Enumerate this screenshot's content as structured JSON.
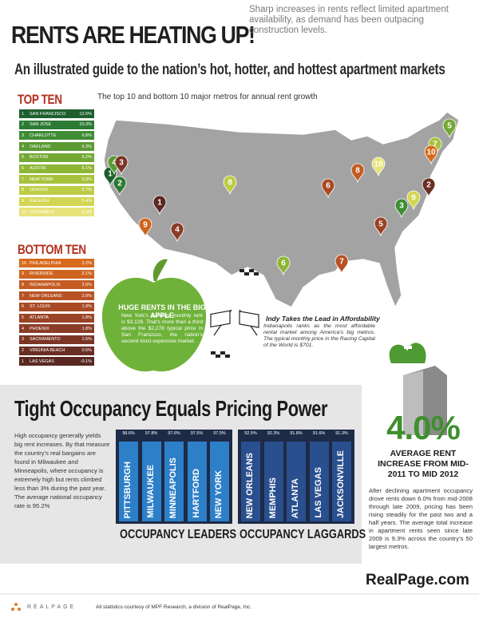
{
  "header": {
    "title": "RENTS ARE HEATING UP!",
    "intro": "Sharp increases in rents reflect limited apartment availability, as demand has been outpacing construction levels.",
    "subtitle": "An illustrated guide to the nation’s hot, hotter, and hottest apartment markets"
  },
  "map": {
    "caption": "The top 10 and bottom 10 major metros for annual rent growth"
  },
  "top_ten": {
    "heading": "TOP TEN",
    "items": [
      {
        "rank": 1,
        "name": "SAN FRANCISCO",
        "value": "12.6%"
      },
      {
        "rank": 2,
        "name": "SAN JOSE",
        "value": "10.3%"
      },
      {
        "rank": 3,
        "name": "CHARLOTTE",
        "value": "6.8%"
      },
      {
        "rank": 4,
        "name": "OAKLAND",
        "value": "6.3%"
      },
      {
        "rank": 5,
        "name": "BOSTON",
        "value": "6.2%"
      },
      {
        "rank": 6,
        "name": "AUSTIN",
        "value": "6.1%"
      },
      {
        "rank": 7,
        "name": "NEW YORK",
        "value": "5.9%"
      },
      {
        "rank": 8,
        "name": "DENVER",
        "value": "5.7%"
      },
      {
        "rank": 9,
        "name": "RALEIGH",
        "value": "5.4%"
      },
      {
        "rank": 10,
        "name": "COLUMBUS",
        "value": "5.1%"
      }
    ]
  },
  "bottom_ten": {
    "heading": "BOTTOM TEN",
    "items": [
      {
        "rank": 10,
        "name": "PHILADELPHIA",
        "value": "2.2%"
      },
      {
        "rank": 9,
        "name": "RIVERSIDE",
        "value": "2.1%"
      },
      {
        "rank": 8,
        "name": "INDIANAPOLIS",
        "value": "2.0%"
      },
      {
        "rank": 7,
        "name": "NEW ORLEANS",
        "value": "2.0%"
      },
      {
        "rank": 6,
        "name": "ST. LOUIS",
        "value": "1.9%"
      },
      {
        "rank": 5,
        "name": "ATLANTA",
        "value": "1.8%"
      },
      {
        "rank": 4,
        "name": "PHOENIX",
        "value": "1.8%"
      },
      {
        "rank": 3,
        "name": "SACRAMENTO",
        "value": "1.5%"
      },
      {
        "rank": 2,
        "name": "VIRGINIA BEACH",
        "value": "0.5%"
      },
      {
        "rank": 1,
        "name": "LAS VEGAS",
        "value": "-0.1%"
      }
    ]
  },
  "big_apple": {
    "heading": "HUGE RENTS IN THE BIG APPLE",
    "text": "New York’s average monthly rent is $3,126. That’s more than a third above the $2,278 typical price in San Francisco, the nation’s second most expensive market."
  },
  "indy": {
    "heading": "Indy Takes the Lead in Affordability",
    "text": "Indianapolis ranks as the most affordable rental market among America’s big metros. The typical monthly price in the Racing Capital of the World is $701."
  },
  "occupancy": {
    "title": "Tight Occupancy Equals Pricing Power",
    "text": "High occupancy generally yields big rent increases. By that measure the country’s real bargains are found in Milwaukee and Minneapolis, where occupancy is extremely high but rents climbed less than 3% during the past year. The average national occupancy rate is 95.2%",
    "leaders": {
      "label": "OCCUPANCY LEADERS",
      "items": [
        {
          "name": "PITTSBURGH",
          "value": "98.6%"
        },
        {
          "name": "MILWAUKEE",
          "value": "97.8%"
        },
        {
          "name": "MINNEAPOLIS",
          "value": "97.6%"
        },
        {
          "name": "HARTFORD",
          "value": "97.5%"
        },
        {
          "name": "NEW YORK",
          "value": "97.5%"
        }
      ]
    },
    "laggards": {
      "label": "OCCUPANCY LAGGARDS",
      "items": [
        {
          "name": "NEW ORLEANS",
          "value": "92.5%"
        },
        {
          "name": "MEMPHIS",
          "value": "92.3%"
        },
        {
          "name": "ATLANTA",
          "value": "91.8%"
        },
        {
          "name": "LAS VEGAS",
          "value": "91.6%"
        },
        {
          "name": "JACKSONVILLE",
          "value": "91.3%"
        }
      ]
    }
  },
  "rent_increase": {
    "value": "4.0%",
    "caption": "AVERAGE RENT INCREASE FROM MID-2011 TO MID 2012",
    "text": "After declining apartment occupancy drove rents down 6.0% from mid-2008 through late 2009, pricing has been rising steadily for the past two and a half years. The average total increase in apartment rents seen since late 2009 is 9.3% across the country’s 50 largest metros."
  },
  "footer": {
    "website": "RealPage.com",
    "logo": "REALPAGE",
    "credit": "All statistics courtesy of MPF Research, a division of RealPage, Inc."
  }
}
